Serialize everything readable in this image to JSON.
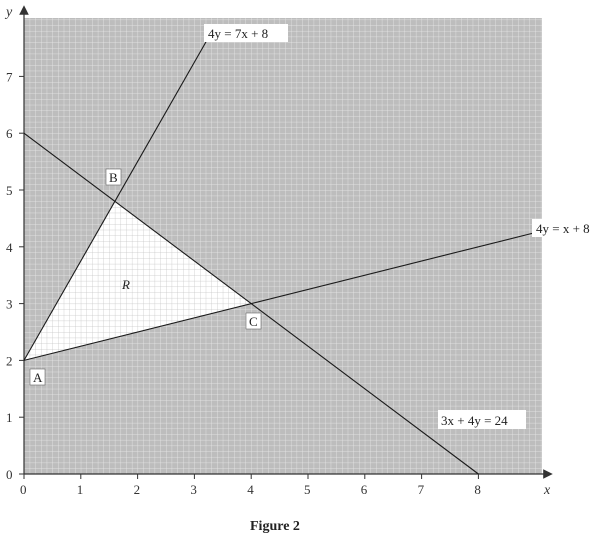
{
  "axes": {
    "x_label": "x",
    "y_label": "y",
    "x_ticks": [
      "0",
      "1",
      "2",
      "3",
      "4",
      "5",
      "6",
      "7",
      "8"
    ],
    "y_ticks": [
      "0",
      "1",
      "2",
      "3",
      "4",
      "5",
      "6",
      "7"
    ],
    "x_range": [
      0,
      9.1
    ],
    "y_range": [
      0,
      8.1
    ]
  },
  "lines": [
    {
      "label": "4y = 7x + 8",
      "slope": 1.75,
      "intercept": 2
    },
    {
      "label": "3x + 4y = 24",
      "slope": -0.75,
      "intercept": 6
    },
    {
      "label": "4y = x + 8",
      "slope": 0.25,
      "intercept": 2
    }
  ],
  "points": [
    {
      "label": "A",
      "x": 0,
      "y": 2
    },
    {
      "label": "B",
      "x": 1.6,
      "y": 4.8
    },
    {
      "label": "C",
      "x": 4,
      "y": 3
    }
  ],
  "region": {
    "label": "R"
  },
  "caption": "Figure 2",
  "colors": {
    "shaded": "#bdbdbd",
    "unshaded": "#ffffff",
    "grid_on_shaded": "#ececec",
    "grid_on_unshaded": "#c4c4c4",
    "lines": "#1a1a1a"
  }
}
